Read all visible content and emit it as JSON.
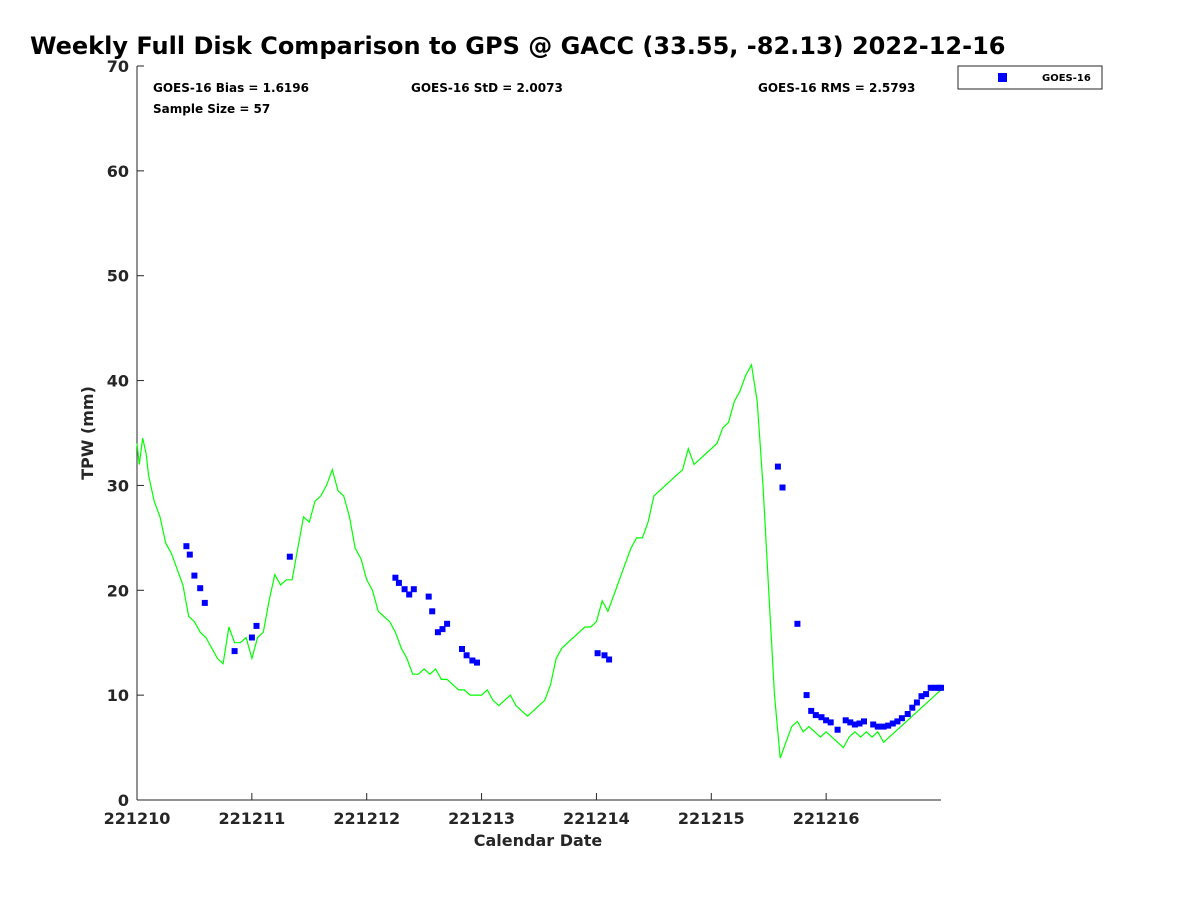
{
  "chart_data": {
    "type": "scatter",
    "title": "Weekly Full Disk Comparison to GPS @ GACC (33.55, -82.13) 2022-12-16",
    "xlabel": "Calendar Date",
    "ylabel": "TPW (mm)",
    "xlim": [
      221210,
      221217
    ],
    "ylim": [
      0,
      70
    ],
    "x_ticks": [
      "221210",
      "221211",
      "221212",
      "221213",
      "221214",
      "221215",
      "221216"
    ],
    "y_ticks": [
      "0",
      "10",
      "20",
      "30",
      "40",
      "50",
      "60",
      "70"
    ],
    "grid": false,
    "legend_position": "top-right",
    "colors": {
      "goes": "#0000ff",
      "gps": "#00ff00",
      "axis": "#262626"
    },
    "stats": {
      "bias": "GOES-16 Bias = 1.6196",
      "std": "GOES-16 StD = 2.0073",
      "rms": "GOES-16 RMS = 2.5793",
      "sample": "Sample Size = 57"
    },
    "series": [
      {
        "name": "GOES-16",
        "marker": "square",
        "x": [
          221210.43,
          221210.46,
          221210.5,
          221210.55,
          221210.59,
          221210.85,
          221211.0,
          221211.04,
          221211.33,
          221212.25,
          221212.28,
          221212.33,
          221212.37,
          221212.41,
          221212.54,
          221212.57,
          221212.62,
          221212.66,
          221212.7,
          221212.83,
          221212.87,
          221212.92,
          221212.96,
          221214.01,
          221214.07,
          221214.11,
          221215.58,
          221215.62,
          221215.75,
          221215.83,
          221215.87,
          221215.91,
          221215.96,
          221216.0,
          221216.04,
          221216.1,
          221216.17,
          221216.21,
          221216.25,
          221216.29,
          221216.33,
          221216.41,
          221216.45,
          221216.5,
          221216.54,
          221216.58,
          221216.62,
          221216.66,
          221216.71,
          221216.75,
          221216.79,
          221216.83,
          221216.87,
          221216.91,
          221216.95,
          221216.98,
          221217.0
        ],
        "y": [
          24.2,
          23.4,
          21.4,
          20.2,
          18.8,
          14.2,
          15.5,
          16.6,
          23.2,
          21.2,
          20.7,
          20.1,
          19.6,
          20.1,
          19.4,
          18.0,
          16.0,
          16.3,
          16.8,
          14.4,
          13.8,
          13.3,
          13.1,
          14.0,
          13.8,
          13.4,
          31.8,
          29.8,
          16.8,
          10.0,
          8.5,
          8.1,
          7.9,
          7.6,
          7.4,
          6.7,
          7.6,
          7.4,
          7.2,
          7.3,
          7.5,
          7.2,
          7.0,
          7.0,
          7.1,
          7.3,
          7.5,
          7.8,
          8.2,
          8.8,
          9.3,
          9.9,
          10.1,
          10.7,
          10.7,
          10.7,
          10.7
        ]
      },
      {
        "name": "",
        "type": "line",
        "x": [
          221210.0,
          221210.02,
          221210.05,
          221210.08,
          221210.1,
          221210.15,
          221210.2,
          221210.25,
          221210.3,
          221210.35,
          221210.4,
          221210.45,
          221210.5,
          221210.55,
          221210.6,
          221210.65,
          221210.7,
          221210.75,
          221210.8,
          221210.85,
          221210.9,
          221210.95,
          221211.0,
          221211.05,
          221211.1,
          221211.15,
          221211.2,
          221211.25,
          221211.3,
          221211.35,
          221211.4,
          221211.45,
          221211.5,
          221211.55,
          221211.6,
          221211.65,
          221211.7,
          221211.75,
          221211.8,
          221211.85,
          221211.9,
          221211.95,
          221212.0,
          221212.05,
          221212.1,
          221212.15,
          221212.2,
          221212.25,
          221212.3,
          221212.35,
          221212.4,
          221212.45,
          221212.5,
          221212.55,
          221212.6,
          221212.65,
          221212.7,
          221212.75,
          221212.8,
          221212.85,
          221212.9,
          221212.95,
          221213.0,
          221213.05,
          221213.1,
          221213.15,
          221213.2,
          221213.25,
          221213.3,
          221213.35,
          221213.4,
          221213.45,
          221213.5,
          221213.55,
          221213.6,
          221213.65,
          221213.7,
          221213.75,
          221213.8,
          221213.85,
          221213.9,
          221213.95,
          221214.0,
          221214.05,
          221214.1,
          221214.15,
          221214.2,
          221214.25,
          221214.3,
          221214.35,
          221214.4,
          221214.45,
          221214.5,
          221214.55,
          221214.6,
          221214.65,
          221214.7,
          221214.75,
          221214.8,
          221214.85,
          221214.9,
          221214.95,
          221215.0,
          221215.05,
          221215.1,
          221215.15,
          221215.2,
          221215.25,
          221215.3,
          221215.35,
          221215.4,
          221215.45,
          221215.5,
          221215.55,
          221215.6,
          221215.65,
          221215.7,
          221215.75,
          221215.8,
          221215.85,
          221215.9,
          221215.95,
          221216.0,
          221216.05,
          221216.1,
          221216.15,
          221216.2,
          221216.25,
          221216.3,
          221216.35,
          221216.4,
          221216.45,
          221216.5,
          221216.55,
          221216.6,
          221216.65,
          221216.7,
          221216.75,
          221216.8,
          221216.85,
          221216.9,
          221216.95,
          221217.0
        ],
        "y": [
          34.0,
          32.0,
          34.5,
          33.0,
          31.0,
          28.5,
          27.0,
          24.5,
          23.5,
          22.0,
          20.5,
          17.5,
          17.0,
          16.0,
          15.5,
          14.5,
          13.5,
          13.0,
          16.5,
          15.0,
          15.0,
          15.5,
          13.5,
          15.5,
          16.0,
          19.0,
          21.5,
          20.5,
          21.0,
          21.0,
          24.0,
          27.0,
          26.5,
          28.5,
          29.0,
          30.0,
          31.5,
          29.5,
          29.0,
          27.0,
          24.0,
          23.0,
          21.0,
          20.0,
          18.0,
          17.5,
          17.0,
          16.0,
          14.5,
          13.5,
          12.0,
          12.0,
          12.5,
          12.0,
          12.5,
          11.5,
          11.5,
          11.0,
          10.5,
          10.5,
          10.0,
          10.0,
          10.0,
          10.5,
          9.5,
          9.0,
          9.5,
          10.0,
          9.0,
          8.5,
          8.0,
          8.5,
          9.0,
          9.5,
          11.0,
          13.5,
          14.5,
          15.0,
          15.5,
          16.0,
          16.5,
          16.5,
          17.0,
          19.0,
          18.0,
          19.5,
          21.0,
          22.5,
          24.0,
          25.0,
          25.0,
          26.5,
          29.0,
          29.5,
          30.0,
          30.5,
          31.0,
          31.5,
          33.5,
          32.0,
          32.5,
          33.0,
          33.5,
          34.0,
          35.5,
          36.0,
          38.0,
          39.0,
          40.5,
          41.5,
          38.0,
          30.0,
          20.0,
          10.0,
          4.0,
          5.5,
          7.0,
          7.5,
          6.5,
          7.0,
          6.5,
          6.0,
          6.5,
          6.0,
          5.5,
          5.0,
          6.0,
          6.5,
          6.0,
          6.5,
          6.0,
          6.5,
          5.5,
          6.0,
          6.5,
          7.0,
          7.5,
          8.0,
          8.5,
          9.0,
          9.5,
          10.0,
          10.5
        ]
      }
    ]
  }
}
